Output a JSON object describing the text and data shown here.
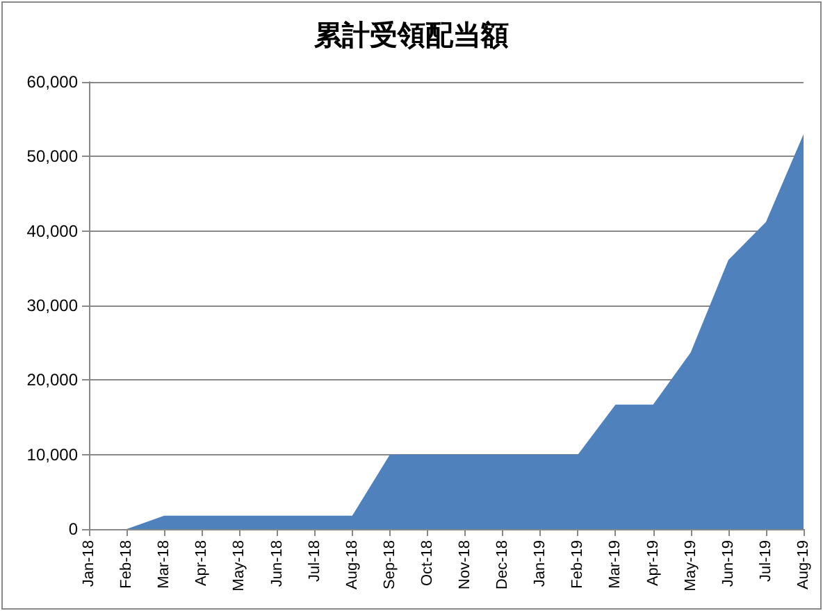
{
  "chart_data": {
    "type": "area",
    "title": "累計受領配当額",
    "categories": [
      "Jan-18",
      "Feb-18",
      "Mar-18",
      "Apr-18",
      "May-18",
      "Jun-18",
      "Jul-18",
      "Aug-18",
      "Sep-18",
      "Oct-18",
      "Nov-18",
      "Dec-18",
      "Jan-19",
      "Feb-19",
      "Mar-19",
      "Apr-19",
      "May-19",
      "Jun-19",
      "Jul-19",
      "Aug-19"
    ],
    "series": [
      {
        "color": "#4f81bd",
        "values": [
          null,
          0,
          1800,
          1800,
          1800,
          1800,
          1800,
          1800,
          10000,
          10000,
          10000,
          10000,
          10000,
          10000,
          16700,
          16700,
          23700,
          36100,
          41200,
          53000
        ]
      }
    ],
    "ylim": [
      0,
      60000
    ],
    "yticks": [
      0,
      {
        "value": 10000,
        "label": "10,000"
      },
      {
        "value": 20000,
        "label": "20,000"
      },
      {
        "value": 30000,
        "label": "30,000"
      },
      {
        "value": 40000,
        "label": "40,000"
      },
      {
        "value": 50000,
        "label": "50,000"
      },
      {
        "value": 60000,
        "label": "60,000"
      }
    ],
    "grid": "y"
  }
}
